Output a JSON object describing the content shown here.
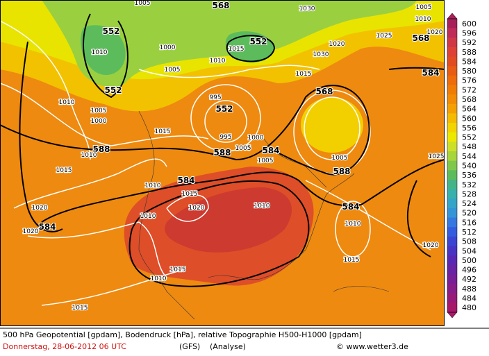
{
  "map": {
    "colorbar": {
      "values": [
        600,
        596,
        592,
        588,
        584,
        580,
        576,
        572,
        568,
        564,
        560,
        556,
        552,
        548,
        544,
        540,
        536,
        532,
        528,
        524,
        520,
        516,
        512,
        508,
        504,
        500,
        496,
        492,
        488,
        484,
        480
      ],
      "colors": [
        "#a8205a",
        "#c02c58",
        "#d03848",
        "#de4236",
        "#e24c22",
        "#e85c14",
        "#ee6c0c",
        "#f07c06",
        "#f28c04",
        "#f4a002",
        "#f4bc00",
        "#f2d400",
        "#ece800",
        "#cce028",
        "#a8d43c",
        "#80c84c",
        "#5cbc5c",
        "#44b488",
        "#38b0ac",
        "#34a4c8",
        "#3494d8",
        "#3478e0",
        "#345ce0",
        "#3c44d4",
        "#4834c4",
        "#5828b4",
        "#6822a4",
        "#781e96",
        "#881c88",
        "#981a78",
        "#a8186a"
      ]
    },
    "geopotential_labels": [
      568,
      552,
      552,
      552,
      552,
      588,
      588,
      584,
      584,
      584,
      584,
      588,
      568,
      568,
      584
    ],
    "pressure_labels": [
      1005,
      1030,
      1010,
      1015,
      1010,
      1000,
      1005,
      1025,
      1020,
      1030,
      1015,
      1010,
      1005,
      1000,
      995,
      995,
      1000,
      1005,
      1015,
      1010,
      1015,
      1005,
      1005,
      1010,
      1015,
      1020,
      1010,
      1010,
      1020,
      1020,
      1010,
      1020,
      1015,
      1015,
      1010,
      1015,
      1025,
      1005,
      1010,
      1020
    ],
    "footer": {
      "description": "500 hPa Geopotential [gpdam], Bodendruck [hPa], relative Topographie H500-H1000 [gpdam]",
      "date": "Donnerstag, 28-06-2012  06 UTC",
      "model": "(GFS)",
      "run": "(Analyse)",
      "source": "© www.wetter3.de"
    }
  }
}
